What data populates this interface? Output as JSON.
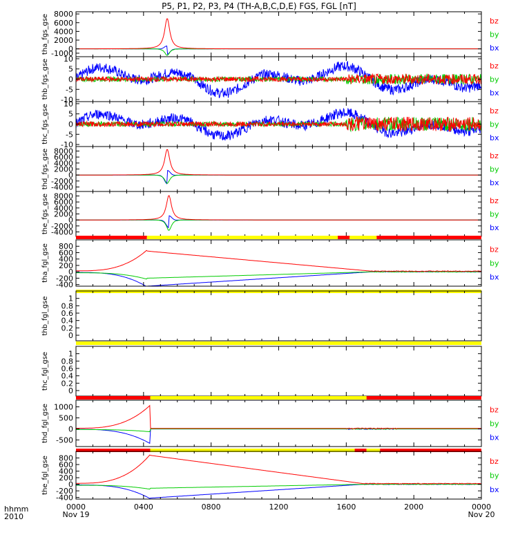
{
  "page": {
    "title": "P5, P1, P2, P3, P4 (TH-A,B,C,D,E) FGS, FGL [nT]",
    "time_axis_label": [
      "hhmm",
      "2010"
    ]
  },
  "colors": {
    "bx": "#0000ff",
    "by": "#00cc00",
    "bz": "#ff0000",
    "status_red": "#ff0000",
    "status_yellow": "#ffff00",
    "status_black": "#000000"
  },
  "chart_data": [
    {
      "id": "tha_fgs",
      "type": "line",
      "ylabel": "tha_fgs_gse",
      "ylim": [
        -1800,
        8500
      ],
      "yticks": [
        8000,
        6000,
        4000,
        2000,
        0,
        -1000
      ],
      "legend": [
        "bz",
        "by",
        "bx"
      ],
      "shape": "peak",
      "peak": {
        "hour": 5.4,
        "bz": 7000,
        "by": -1500,
        "bx": -1200,
        "width": 0.45
      },
      "data_span": [
        1.0,
        9.0
      ]
    },
    {
      "id": "thb_fgs",
      "type": "line",
      "ylabel": "thb_fgs_gse",
      "ylim": [
        -11,
        11
      ],
      "yticks": [
        10,
        5,
        0,
        -5,
        -10
      ],
      "legend": [
        "bz",
        "by",
        "bx"
      ],
      "shape": "noise",
      "noise_bx": 7,
      "noise_z": 2.5
    },
    {
      "id": "thc_fgs",
      "type": "line",
      "ylabel": "thc_fgs_gse",
      "ylim": [
        -11,
        11
      ],
      "yticks": [
        10,
        5,
        0,
        -5,
        -10
      ],
      "legend": [
        "bz",
        "by",
        "bx"
      ],
      "shape": "noise",
      "noise_bx": 6,
      "noise_z": 3.5
    },
    {
      "id": "thd_fgs",
      "type": "line",
      "ylabel": "thd_fgs_gse",
      "ylim": [
        -5500,
        9500
      ],
      "yticks": [
        8000,
        6000,
        4000,
        2000,
        0,
        -2000,
        -4000
      ],
      "legend": [
        "bz",
        "by",
        "bx"
      ],
      "shape": "peak",
      "peak": {
        "hour": 5.4,
        "bz": 8600,
        "by": -2800,
        "bx": 2800,
        "width": 0.45
      },
      "data_span": [
        2.2,
        8.8
      ]
    },
    {
      "id": "the_fgs",
      "type": "line",
      "ylabel": "the_fgs_gse",
      "ylim": [
        -5500,
        9500
      ],
      "yticks": [
        8000,
        6000,
        4000,
        2000,
        0,
        -2000,
        -4000
      ],
      "legend": [
        "bz",
        "by",
        "bx"
      ],
      "shape": "peak",
      "peak": {
        "hour": 5.5,
        "bz": 8200,
        "by": -3500,
        "bx": 2500,
        "width": 0.45
      },
      "data_span": [
        2.6,
        10.5
      ]
    },
    {
      "id": "tha_fgl",
      "type": "line",
      "ylabel": "tha_fgl_gse",
      "ylim": [
        -450,
        1000
      ],
      "yticks": [
        800,
        600,
        400,
        200,
        0,
        -200,
        -400
      ],
      "legend": [
        "bz",
        "by",
        "bx"
      ],
      "shape": "ramp",
      "ramp": {
        "hour": 4.2,
        "bz_peak": 650,
        "by_min": -200,
        "bx_min": -450,
        "recover": 17.5
      },
      "status_bar": [
        [
          "red",
          0,
          4.2
        ],
        [
          "yellow",
          4.2,
          15.5
        ],
        [
          "red",
          15.5,
          16.2
        ],
        [
          "yellow",
          16.2,
          17.8
        ],
        [
          "red",
          17.8,
          24
        ]
      ]
    },
    {
      "id": "thb_fgl",
      "type": "line",
      "ylabel": "thb_fgl_gse",
      "ylim": [
        -0.15,
        1.2
      ],
      "yticks": [
        1.0,
        0.8,
        0.6,
        0.4,
        0.2,
        0.0
      ],
      "legend": [],
      "shape": "empty",
      "status_bar": [
        [
          "yellow",
          0,
          24
        ]
      ]
    },
    {
      "id": "thc_fgl",
      "type": "line",
      "ylabel": "thc_fgl_gse",
      "ylim": [
        -0.15,
        1.2
      ],
      "yticks": [
        1.0,
        0.8,
        0.6,
        0.4,
        0.2,
        0.0
      ],
      "legend": [],
      "shape": "empty",
      "status_bar": [
        [
          "yellow",
          0,
          24
        ]
      ]
    },
    {
      "id": "thd_fgl",
      "type": "line",
      "ylabel": "thd_fgl_gse",
      "ylim": [
        -800,
        1300
      ],
      "yticks": [
        1000,
        500,
        0,
        -500
      ],
      "legend": [
        "bz",
        "by",
        "bx"
      ],
      "shape": "spike",
      "ramp": {
        "hour": 4.4,
        "bz_peak": 1050,
        "by_min": -100,
        "bx_min": -650
      },
      "status_bar": [
        [
          "red",
          0,
          4.4
        ],
        [
          "yellow",
          4.4,
          17.2
        ],
        [
          "red",
          17.2,
          24
        ]
      ]
    },
    {
      "id": "the_fgl",
      "type": "line",
      "ylabel": "the_fgl_gse",
      "ylim": [
        -450,
        1000
      ],
      "yticks": [
        800,
        600,
        400,
        200,
        0,
        -200,
        -400
      ],
      "legend": [
        "bz",
        "by",
        "bx"
      ],
      "shape": "ramp",
      "ramp": {
        "hour": 4.4,
        "bz_peak": 880,
        "by_min": -120,
        "bx_min": -420,
        "recover": 17.0
      },
      "status_bar": [
        [
          "red",
          0,
          4.4
        ],
        [
          "yellow",
          4.4,
          16.5
        ],
        [
          "red",
          16.5,
          17.2
        ],
        [
          "yellow",
          17.2,
          18.0
        ],
        [
          "red",
          18.0,
          24
        ]
      ]
    }
  ],
  "x_axis": {
    "ticks": [
      {
        "hour": 0,
        "label": "0000",
        "date": "Nov 19"
      },
      {
        "hour": 4,
        "label": "0400",
        "date": ""
      },
      {
        "hour": 8,
        "label": "0800",
        "date": ""
      },
      {
        "hour": 12,
        "label": "1200",
        "date": ""
      },
      {
        "hour": 16,
        "label": "1600",
        "date": ""
      },
      {
        "hour": 20,
        "label": "2000",
        "date": ""
      },
      {
        "hour": 24,
        "label": "0000",
        "date": "Nov 20"
      }
    ],
    "range": [
      0,
      24
    ]
  }
}
